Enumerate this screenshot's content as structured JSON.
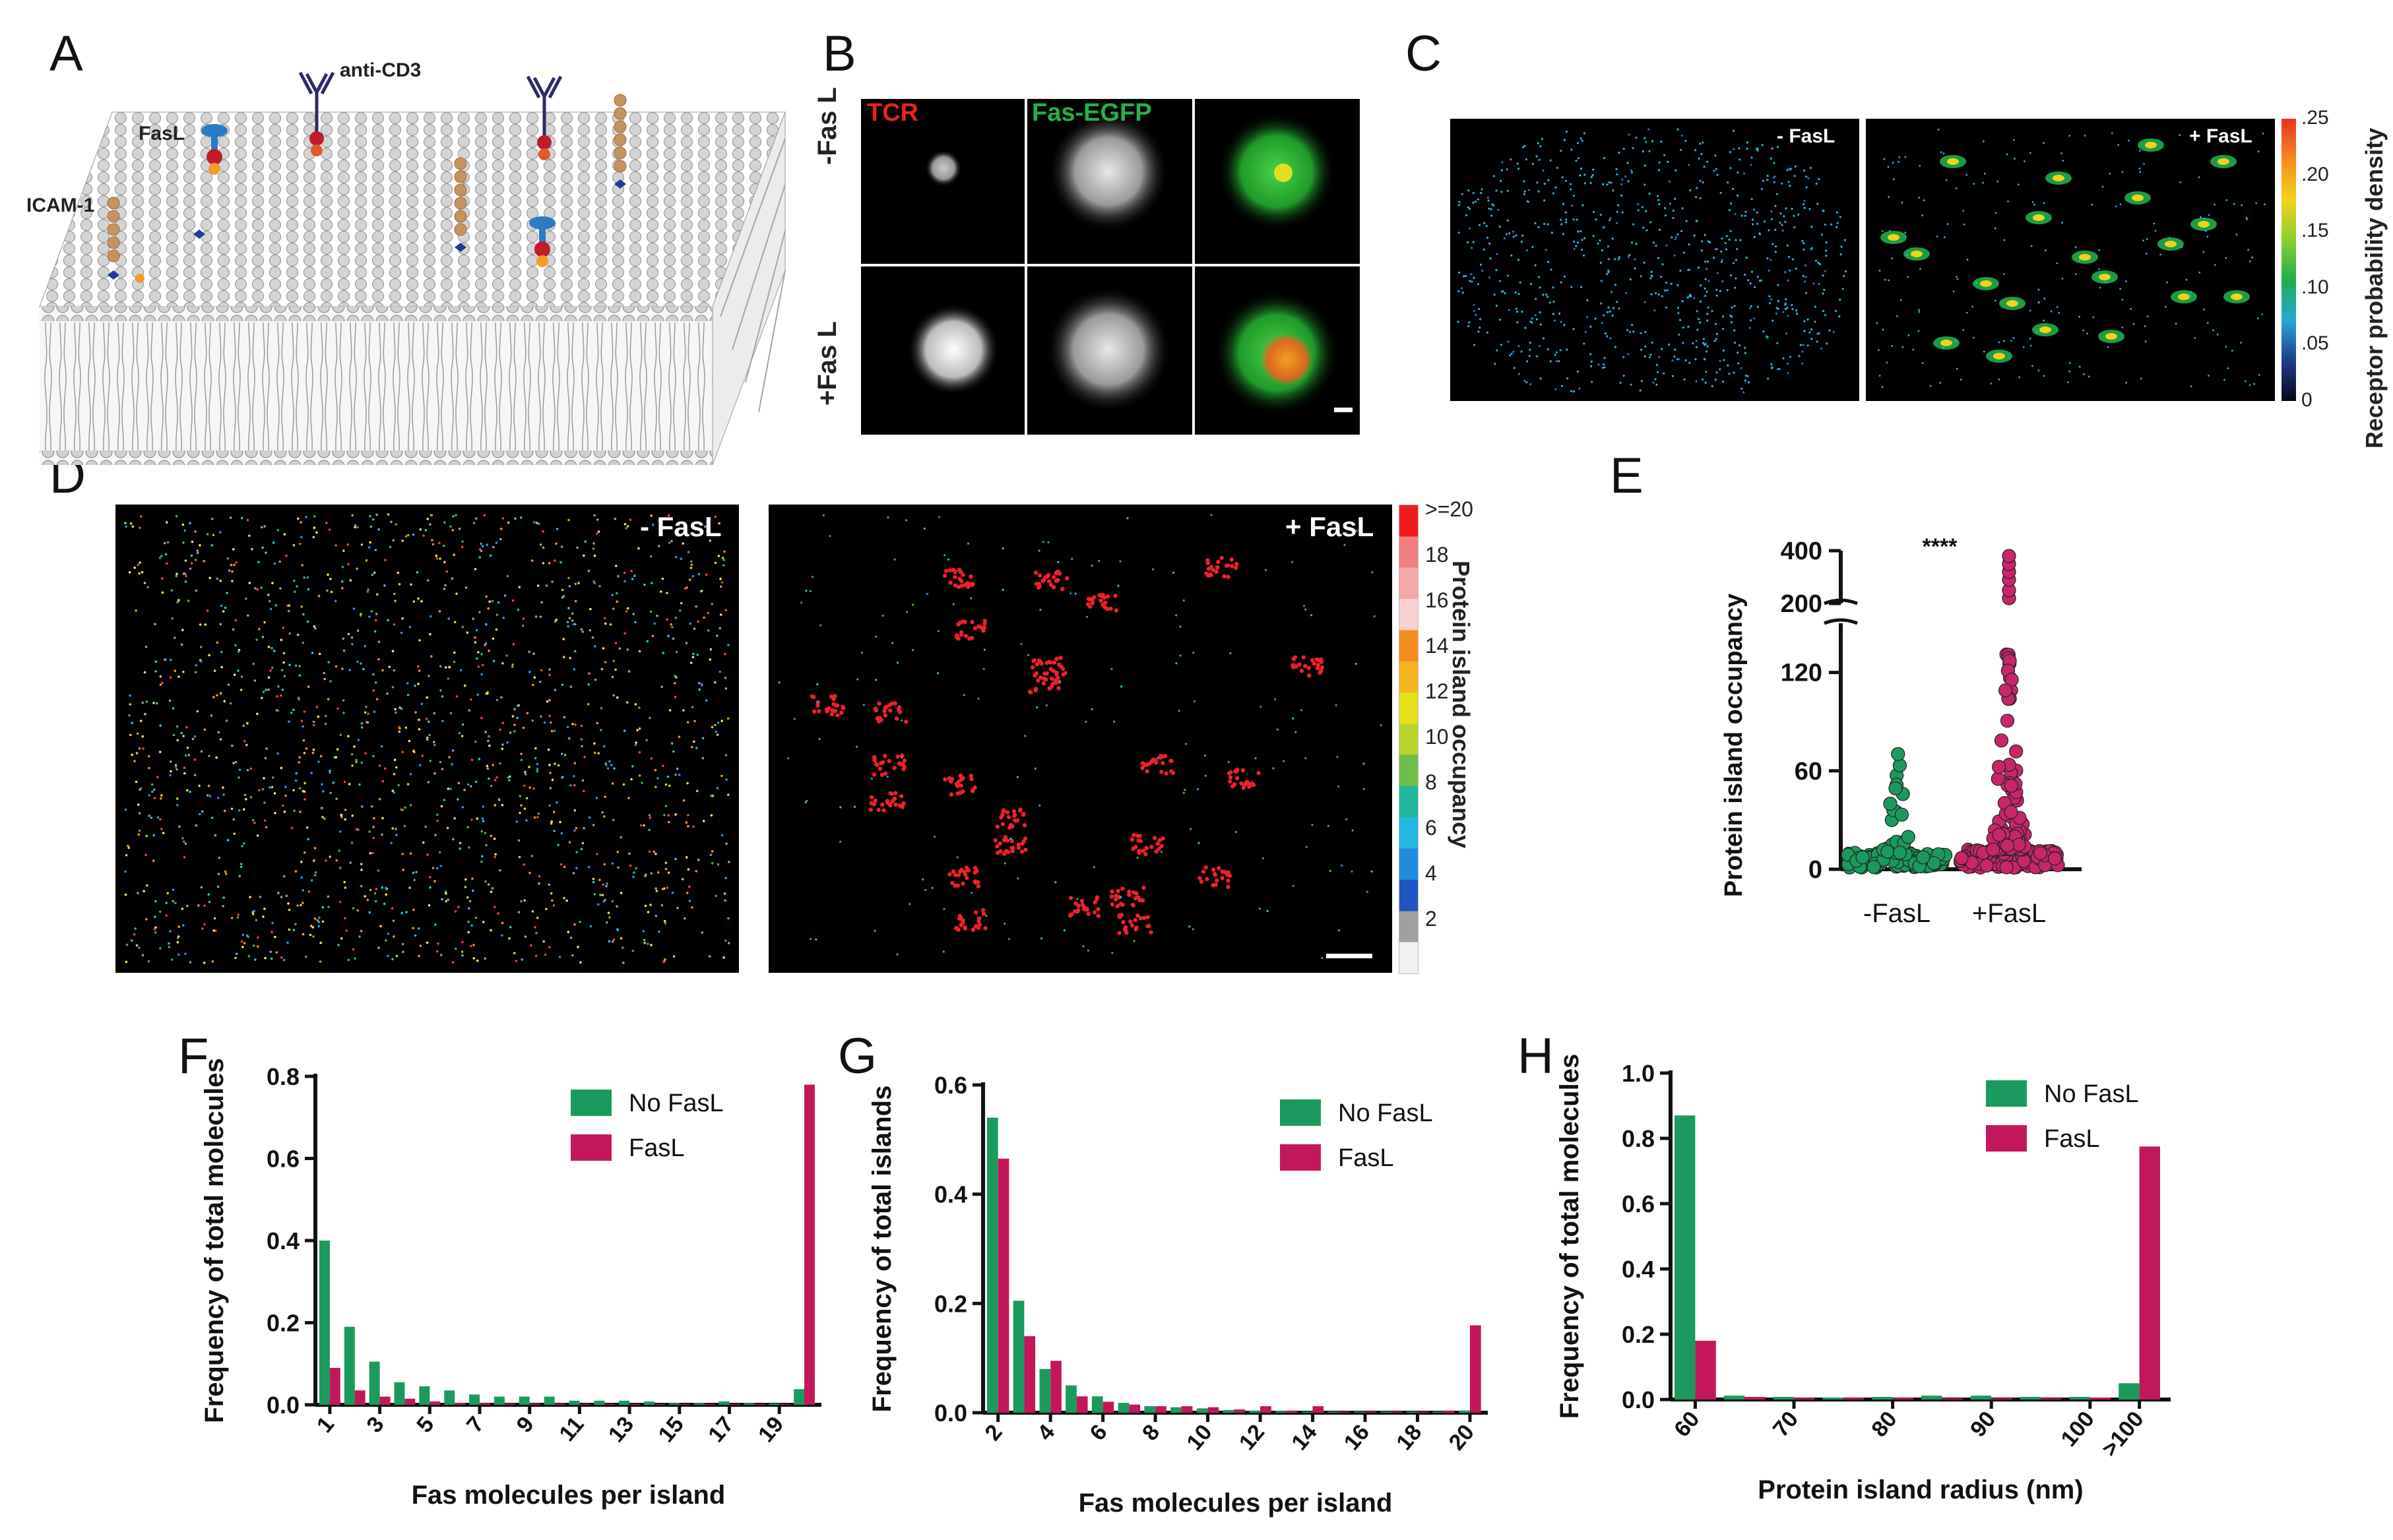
{
  "panels": {
    "A": {
      "letter": "A",
      "labels": {
        "anti_cd3": "anti-CD3",
        "fasl": "FasL",
        "icam": "ICAM-1"
      }
    },
    "B": {
      "letter": "B",
      "channels": {
        "tcr": "TCR",
        "fas_egfp": "Fas-EGFP"
      },
      "rows": {
        "minus": "-Fas L",
        "plus": "+Fas L"
      }
    },
    "C": {
      "letter": "C",
      "minus_label": "- FasL",
      "plus_label": "+ FasL",
      "colorbar_title": "Receptor probability density",
      "colorbar_ticks": [
        ".25",
        ".20",
        ".15",
        ".10",
        ".05",
        "0"
      ],
      "colorbar_colors": [
        "#e8321e",
        "#f58a1f",
        "#f2d21a",
        "#8ccf2d",
        "#1fae4c",
        "#25a7d9",
        "#1e3c8c",
        "#05071a"
      ]
    },
    "D": {
      "letter": "D",
      "minus_label": "- FasL",
      "plus_label": "+ FasL",
      "colorbar_title": "Protein island occupancy",
      "colorbar_ticks": [
        ">=20",
        "18",
        "16",
        "14",
        "12",
        "10",
        "8",
        "6",
        "4",
        "2"
      ]
    },
    "E": {
      "letter": "E",
      "significance": "****"
    },
    "F": {
      "letter": "F"
    },
    "G": {
      "letter": "G"
    },
    "H": {
      "letter": "H"
    }
  },
  "chart_data": [
    {
      "panel": "E",
      "type": "scatter",
      "title": "",
      "xlabel": "",
      "ylabel": "Protein island occupancy",
      "categories": [
        "-FasL",
        "+FasL"
      ],
      "y_ticks_lower": [
        "0",
        "60",
        "120"
      ],
      "y_ticks_upper": [
        "200",
        "400"
      ],
      "ylim_lower": [
        0,
        150
      ],
      "ylim_upper": [
        200,
        400
      ],
      "series": [
        {
          "name": "-FasL",
          "color": "#1a9a5c",
          "summary": {
            "min": 1,
            "max": 72,
            "bulk_max": 10
          }
        },
        {
          "name": "+FasL",
          "color": "#c8256a",
          "summary": {
            "min": 1,
            "max": 380,
            "bulk_max": 12
          }
        }
      ]
    },
    {
      "panel": "F",
      "type": "bar",
      "title": "",
      "xlabel": "Fas molecules per island",
      "ylabel": "Frequency of total molecules",
      "ylim": [
        0,
        0.8
      ],
      "y_ticks": [
        "0.0",
        "0.2",
        "0.4",
        "0.6",
        "0.8"
      ],
      "categories": [
        "1",
        "2",
        "3",
        "4",
        "5",
        "6",
        "7",
        "8",
        "9",
        "10",
        "11",
        "12",
        "13",
        "14",
        "15",
        "16",
        "17",
        "18",
        "19",
        "20"
      ],
      "x_tick_labels": [
        "1",
        "3",
        "5",
        "7",
        "9",
        "11",
        "13",
        "15",
        "17",
        "19"
      ],
      "legend": [
        "No FasL",
        "FasL"
      ],
      "series": [
        {
          "name": "No FasL",
          "color": "#1a9a5c",
          "values": [
            0.4,
            0.19,
            0.105,
            0.055,
            0.045,
            0.035,
            0.025,
            0.02,
            0.02,
            0.02,
            0.01,
            0.01,
            0.01,
            0.008,
            0.004,
            0.004,
            0.008,
            0.004,
            0.003,
            0.038
          ]
        },
        {
          "name": "FasL",
          "color": "#c2185b",
          "values": [
            0.09,
            0.035,
            0.02,
            0.015,
            0.008,
            0.005,
            0.004,
            0.003,
            0.003,
            0.003,
            0.002,
            0.002,
            0.002,
            0.002,
            0.002,
            0.002,
            0.002,
            0.002,
            0.002,
            0.78
          ]
        }
      ]
    },
    {
      "panel": "G",
      "type": "bar",
      "title": "",
      "xlabel": "Fas molecules per island",
      "ylabel": "Frequency of total islands",
      "ylim": [
        0,
        0.6
      ],
      "y_ticks": [
        "0.0",
        "0.2",
        "0.4",
        "0.6"
      ],
      "categories": [
        "2",
        "3",
        "4",
        "5",
        "6",
        "7",
        "8",
        "9",
        "10",
        "11",
        "12",
        "13",
        "14",
        "15",
        "16",
        "17",
        "18",
        "19",
        "20"
      ],
      "x_tick_labels": [
        "2",
        "4",
        "6",
        "8",
        "10",
        "12",
        "14",
        "16",
        "18",
        "20"
      ],
      "legend": [
        "No FasL",
        "FasL"
      ],
      "series": [
        {
          "name": "No FasL",
          "color": "#1a9a5c",
          "values": [
            0.54,
            0.205,
            0.08,
            0.05,
            0.03,
            0.018,
            0.012,
            0.01,
            0.008,
            0.005,
            0.004,
            0.003,
            0.002,
            0.002,
            0.002,
            0.002,
            0.002,
            0.002,
            0.004
          ]
        },
        {
          "name": "FasL",
          "color": "#c2185b",
          "values": [
            0.465,
            0.14,
            0.095,
            0.03,
            0.02,
            0.015,
            0.012,
            0.012,
            0.01,
            0.006,
            0.012,
            0.004,
            0.012,
            0.002,
            0.002,
            0.002,
            0.002,
            0.004,
            0.16
          ]
        }
      ]
    },
    {
      "panel": "H",
      "type": "bar",
      "title": "",
      "xlabel": "Protein island radius (nm)",
      "ylabel": "Frequency of total molecules",
      "ylim": [
        0,
        1.0
      ],
      "y_ticks": [
        "0.0",
        "0.2",
        "0.4",
        "0.6",
        "0.8",
        "1.0"
      ],
      "categories": [
        "60",
        "65",
        "70",
        "75",
        "80",
        "85",
        "90",
        "95",
        "100",
        ">100"
      ],
      "x_tick_labels": [
        "60",
        "70",
        "80",
        "90",
        "100",
        ">100"
      ],
      "legend": [
        "No FasL",
        "FasL"
      ],
      "series": [
        {
          "name": "No FasL",
          "color": "#1a9a5c",
          "values": [
            0.87,
            0.012,
            0.008,
            0.006,
            0.008,
            0.012,
            0.012,
            0.008,
            0.008,
            0.05
          ]
        },
        {
          "name": "FasL",
          "color": "#c2185b",
          "values": [
            0.18,
            0.008,
            0.005,
            0.005,
            0.005,
            0.004,
            0.004,
            0.004,
            0.006,
            0.775
          ]
        }
      ]
    }
  ]
}
